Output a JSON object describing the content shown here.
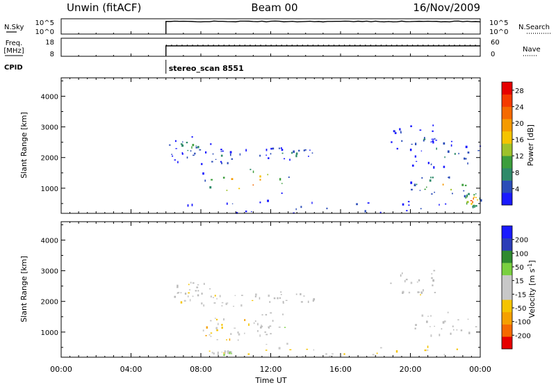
{
  "header": {
    "title_left": "Unwin (fitACF)",
    "title_center": "Beam 00",
    "title_right": "16/Nov/2009"
  },
  "colors": {
    "power_scale": [
      "#1a1aff",
      "#2b4db8",
      "#2f8a6a",
      "#3d9e3d",
      "#9ec22a",
      "#f5c400",
      "#f59a00",
      "#f56a00",
      "#f53a00",
      "#e60000"
    ],
    "velocity_scale": [
      "#e60000",
      "#f56a00",
      "#f5a000",
      "#f5c400",
      "#c8c8c8",
      "#c8c8c8",
      "#7ad040",
      "#2f8a2f",
      "#2b3db8",
      "#1a1aff"
    ],
    "ground_scatter": "#bbbbbb"
  },
  "panels": {
    "nsky": {
      "label": "N.Sky",
      "left_ticks": [
        "10^5",
        "10^0"
      ],
      "right_ticks": [
        "10^5",
        "10^0"
      ],
      "right_label": "N.Search",
      "start_hour": 6.0,
      "end_hour": 24.0
    },
    "freq": {
      "label_line1": "Freq.",
      "label_line2": "[MHz]",
      "left_ticks": [
        "18",
        "8"
      ],
      "right_ticks": [
        "60",
        "0"
      ],
      "right_label": "Nave",
      "start_hour": 6.0,
      "end_hour": 24.0
    },
    "cpid": {
      "label": "CPID",
      "program": "stereo_scan 8551",
      "start_hour": 6.0
    }
  },
  "chart_data": [
    {
      "type": "heatmap",
      "quantity": "Power",
      "ylabel": "Slant Range [km]",
      "colorbar_label": "Power [dB]",
      "colorbar_ticks": [
        "4",
        "8",
        "12",
        "16",
        "20",
        "24",
        "28"
      ],
      "color_range": [
        0,
        30
      ],
      "yticks": [
        1000,
        2000,
        3000,
        4000
      ],
      "ylim": [
        180,
        4600
      ],
      "xlim": [
        0,
        24
      ],
      "echo_regions": [
        {
          "x0": 6.0,
          "x1": 8.7,
          "y0": 2100,
          "y1": 2700,
          "peak": 10
        },
        {
          "x0": 6.0,
          "x1": 11.0,
          "y0": 1800,
          "y1": 2300,
          "peak": 8
        },
        {
          "x0": 8.0,
          "x1": 13.2,
          "y0": 700,
          "y1": 1700,
          "peak": 28
        },
        {
          "x0": 11.0,
          "x1": 14.8,
          "y0": 1950,
          "y1": 2350,
          "peak": 7
        },
        {
          "x0": 18.7,
          "x1": 21.5,
          "y0": 2200,
          "y1": 3100,
          "peak": 8
        },
        {
          "x0": 19.8,
          "x1": 24.0,
          "y0": 1700,
          "y1": 2600,
          "peak": 8
        },
        {
          "x0": 19.8,
          "x1": 24.0,
          "y0": 800,
          "y1": 1450,
          "peak": 22
        },
        {
          "x0": 23.0,
          "x1": 24.0,
          "y0": 400,
          "y1": 900,
          "peak": 30
        },
        {
          "x0": 6.5,
          "x1": 24.0,
          "y0": 200,
          "y1": 650,
          "peak": 6
        }
      ]
    },
    {
      "type": "heatmap",
      "quantity": "Velocity",
      "ylabel": "Slant Range [km]",
      "colorbar_label": "Velocity [m s",
      "colorbar_label_exp": "-1",
      "colorbar_label_end": "]",
      "colorbar_ticks": [
        "-200",
        "-100",
        "-50",
        "-15",
        "15",
        "50",
        "100",
        "200"
      ],
      "color_range": [
        -250,
        250
      ],
      "yticks": [
        1000,
        2000,
        3000,
        4000
      ],
      "ylim": [
        180,
        4600
      ],
      "xlim": [
        0,
        24
      ],
      "echo_regions": [
        {
          "x0": 6.0,
          "x1": 8.7,
          "y0": 2100,
          "y1": 2700,
          "value": 0,
          "ground": true
        },
        {
          "x0": 6.0,
          "x1": 11.0,
          "y0": 1800,
          "y1": 2300,
          "value": -20
        },
        {
          "x0": 8.0,
          "x1": 11.0,
          "y0": 700,
          "y1": 1550,
          "value": -60
        },
        {
          "x0": 10.8,
          "x1": 13.2,
          "y0": 900,
          "y1": 1700,
          "value": 0,
          "ground": true
        },
        {
          "x0": 11.0,
          "x1": 14.8,
          "y0": 1950,
          "y1": 2350,
          "value": 0,
          "ground": true
        },
        {
          "x0": 18.7,
          "x1": 21.5,
          "y0": 2200,
          "y1": 3100,
          "value": 0,
          "ground": true
        },
        {
          "x0": 19.8,
          "x1": 24.0,
          "y0": 800,
          "y1": 1700,
          "value": 0,
          "ground": true
        },
        {
          "x0": 8.6,
          "x1": 9.8,
          "y0": 280,
          "y1": 420,
          "value": 40
        },
        {
          "x0": 6.5,
          "x1": 24.0,
          "y0": 200,
          "y1": 650,
          "value": -40
        }
      ]
    }
  ],
  "time_axis": {
    "label": "Time UT",
    "ticks": [
      "00:00",
      "04:00",
      "08:00",
      "12:00",
      "16:00",
      "20:00",
      "00:00"
    ],
    "tick_hours": [
      0,
      4,
      8,
      12,
      16,
      20,
      24
    ]
  }
}
